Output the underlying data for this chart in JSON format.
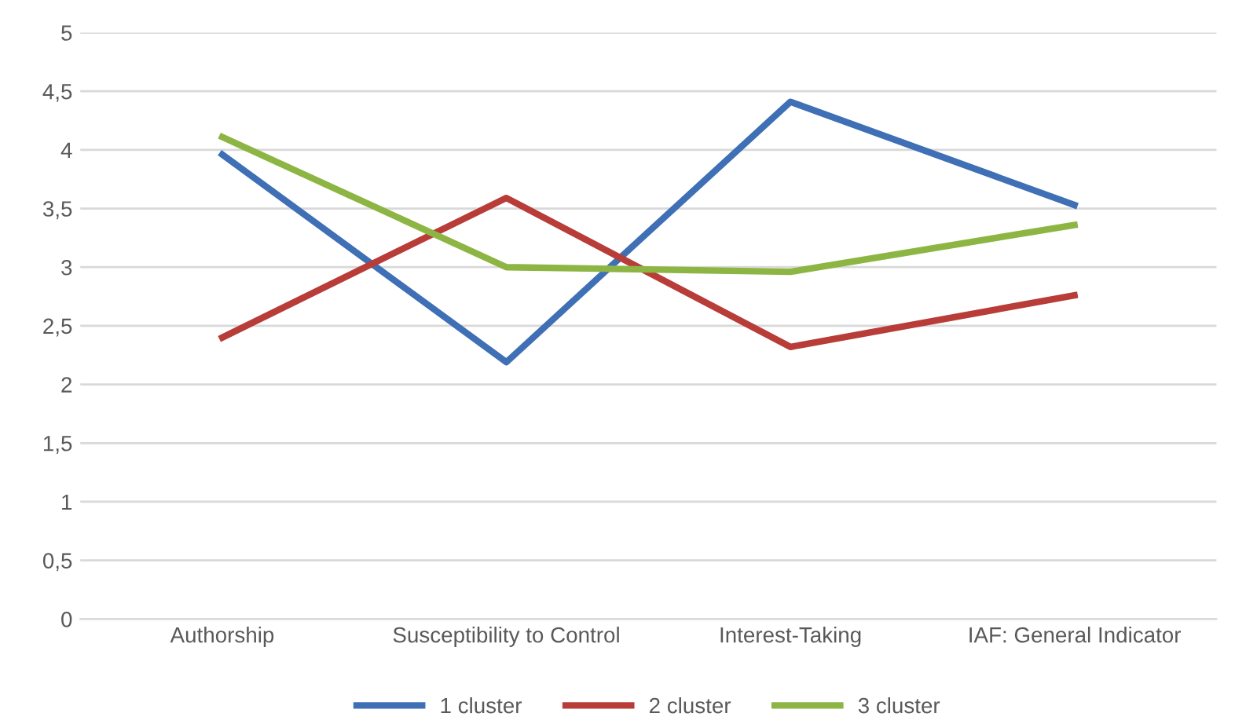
{
  "chart_data": {
    "type": "line",
    "categories": [
      "Authorship",
      "Susceptibility to Control",
      "Interest-Taking",
      "IAF: General Indicator"
    ],
    "series": [
      {
        "name": "1 cluster",
        "color": "#3f6fb5",
        "values": [
          3.96,
          2.19,
          4.41,
          3.53
        ]
      },
      {
        "name": "2 cluster",
        "color": "#b83c38",
        "values": [
          2.4,
          3.59,
          2.32,
          2.76
        ]
      },
      {
        "name": "3 cluster",
        "color": "#8db543",
        "values": [
          4.11,
          3.0,
          2.96,
          3.36
        ]
      }
    ],
    "ylim": [
      0,
      5
    ],
    "yticks": [
      0,
      {
        "value": 0.5,
        "label": "0,5"
      },
      1,
      {
        "value": 1.5,
        "label": "1,5"
      },
      2,
      {
        "value": 2.5,
        "label": "2,5"
      },
      3,
      {
        "value": 3.5,
        "label": "3,5"
      },
      4,
      {
        "value": 4.5,
        "label": "4,5"
      },
      5
    ],
    "grid": "y",
    "legend": "bottom",
    "marker": "none",
    "line_style": "solid"
  }
}
